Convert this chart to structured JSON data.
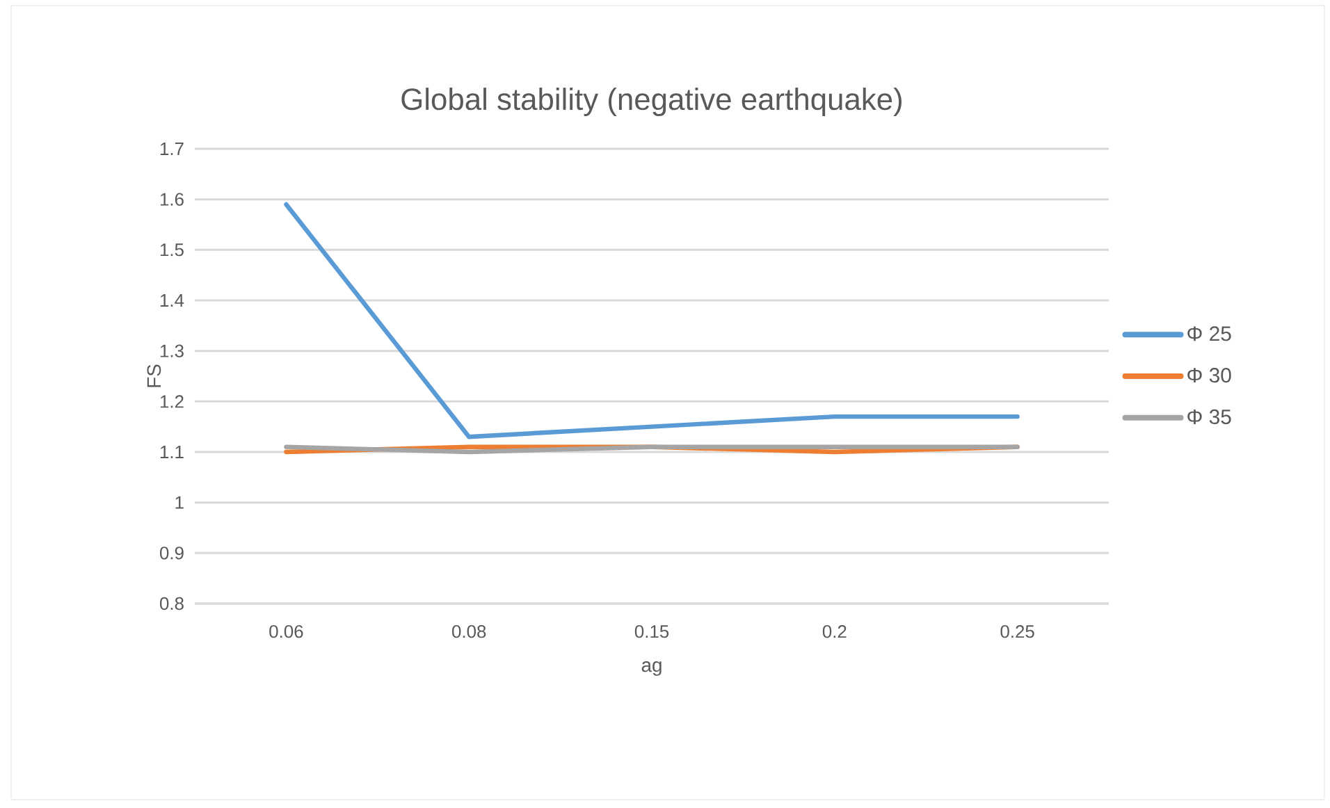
{
  "chart_data": {
    "type": "line",
    "title": "Global stability (negative earthquake)",
    "xlabel": "ag",
    "ylabel": "FS",
    "categories": [
      "0.06",
      "0.08",
      "0.15",
      "0.2",
      "0.25"
    ],
    "series": [
      {
        "name": "Φ 25",
        "color": "#5b9bd5",
        "values": [
          1.59,
          1.13,
          1.15,
          1.17,
          1.17
        ]
      },
      {
        "name": "Φ 30",
        "color": "#ed7d31",
        "values": [
          1.1,
          1.11,
          1.11,
          1.1,
          1.11
        ]
      },
      {
        "name": "Φ 35",
        "color": "#a5a5a5",
        "values": [
          1.11,
          1.1,
          1.11,
          1.11,
          1.11
        ]
      }
    ],
    "ylim": [
      0.8,
      1.7
    ],
    "yticks": [
      0.8,
      0.9,
      1,
      1.1,
      1.2,
      1.3,
      1.4,
      1.5,
      1.6,
      1.7
    ],
    "grid": "y",
    "legend": "right",
    "line_style": "solid",
    "marker": "none"
  }
}
